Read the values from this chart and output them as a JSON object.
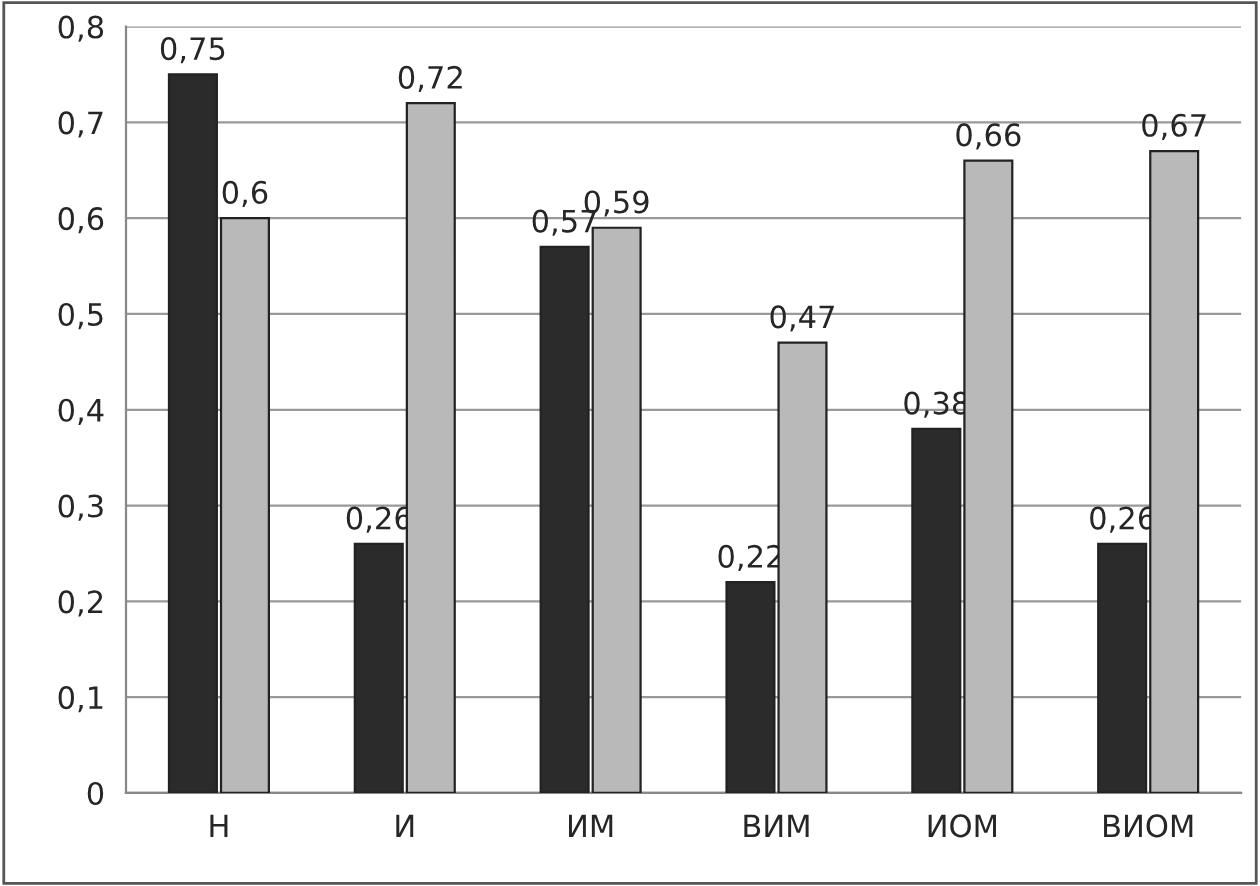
{
  "chart_data": {
    "type": "bar",
    "categories": [
      "Н",
      "И",
      "ИМ",
      "ВИМ",
      "ИОМ",
      "ВИОМ"
    ],
    "series": [
      {
        "color": "#2b2b2b",
        "values": [
          0.75,
          0.26,
          0.57,
          0.22,
          0.38,
          0.26
        ],
        "value_labels": [
          "0,75",
          "0,26",
          "0,57",
          "0,22",
          "0,38",
          "0,26"
        ]
      },
      {
        "color": "#b9b9b9",
        "values": [
          0.6,
          0.72,
          0.59,
          0.47,
          0.66,
          0.67
        ],
        "value_labels": [
          "0,6",
          "0,72",
          "0,59",
          "0,47",
          "0,66",
          "0,67"
        ]
      }
    ],
    "ylim": [
      0,
      0.8
    ],
    "yticks": [
      0,
      {
        "value": 0.1,
        "label": "0,1"
      },
      {
        "value": 0.2,
        "label": "0,2"
      },
      {
        "value": 0.3,
        "label": "0,3"
      },
      {
        "value": 0.4,
        "label": "0,4"
      },
      {
        "value": 0.5,
        "label": "0,5"
      },
      {
        "value": 0.6,
        "label": "0,6"
      },
      {
        "value": 0.7,
        "label": "0,7"
      },
      {
        "value": 0.8,
        "label": "0,8"
      }
    ],
    "grid": "y",
    "legend": false
  }
}
